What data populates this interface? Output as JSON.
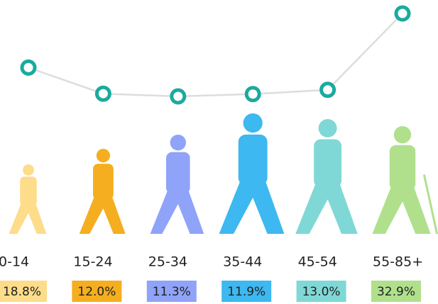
{
  "chart_data": {
    "type": "line",
    "categories": [
      "0-14",
      "15-24",
      "25-34",
      "35-44",
      "45-54",
      "55-85+"
    ],
    "values": [
      18.8,
      12.0,
      11.3,
      11.9,
      13.0,
      32.9
    ],
    "value_labels": [
      "18.8%",
      "12.0%",
      "11.3%",
      "11.9%",
      "13.0%",
      "32.9%"
    ],
    "colors": [
      "#fddc8a",
      "#f5ae1f",
      "#8fa3f9",
      "#3db8f0",
      "#7fd8d6",
      "#b0e08c"
    ],
    "line_color": "#dddddd",
    "marker_color": "#1aaa9e"
  }
}
